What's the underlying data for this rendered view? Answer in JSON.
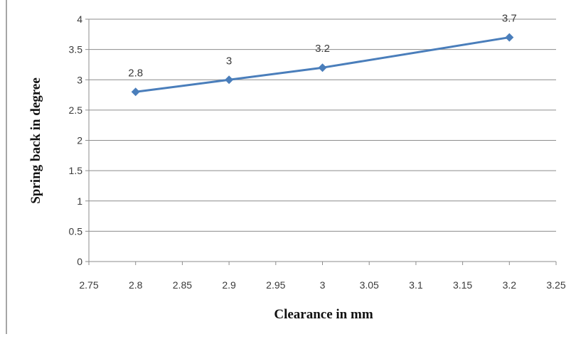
{
  "chart_data": {
    "type": "line",
    "title": "",
    "xlabel": "Clearance in mm",
    "ylabel": "Spring back in degree",
    "xlim": [
      2.75,
      3.25
    ],
    "ylim": [
      0,
      4
    ],
    "x_ticks": [
      "2.75",
      "2.8",
      "2.85",
      "2.9",
      "2.95",
      "3",
      "3.05",
      "3.1",
      "3.15",
      "3.2",
      "3.25"
    ],
    "y_ticks": [
      "0",
      "0.5",
      "1",
      "1.5",
      "2",
      "2.5",
      "3",
      "3.5",
      "4"
    ],
    "grid": "horizontal",
    "legend": "none",
    "series": [
      {
        "color": "#4a7ebb",
        "marker": "diamond",
        "points": [
          {
            "x": 2.8,
            "y": 2.8,
            "label": "2.8"
          },
          {
            "x": 2.9,
            "y": 3.0,
            "label": "3"
          },
          {
            "x": 3.0,
            "y": 3.2,
            "label": "3.2"
          },
          {
            "x": 3.2,
            "y": 3.7,
            "label": "3.7"
          }
        ]
      }
    ]
  }
}
